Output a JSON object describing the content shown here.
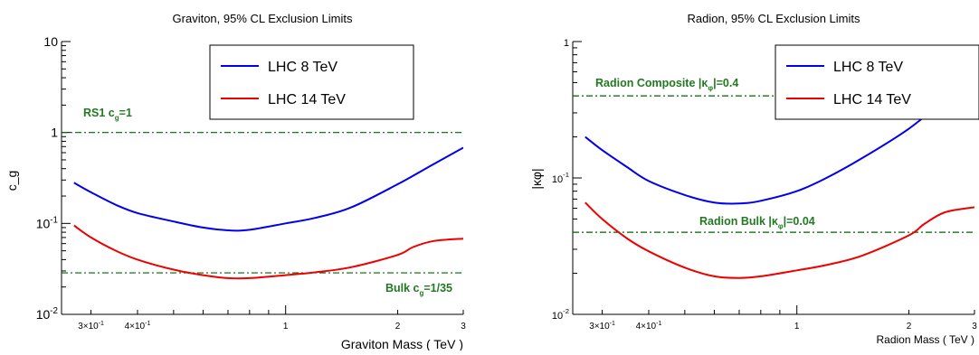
{
  "chart_data": [
    {
      "type": "line",
      "title": "Graviton, 95% CL Exclusion Limits",
      "xlabel": "Graviton Mass ( TeV )",
      "ylabel": "c_g",
      "xscale": "log",
      "yscale": "log",
      "xlim": [
        0.25,
        3
      ],
      "ylim": [
        0.01,
        10
      ],
      "x_ticks": [
        {
          "value": 0.3,
          "base": "3×10",
          "exp": "-1"
        },
        {
          "value": 0.4,
          "base": "4×10",
          "exp": "-1"
        },
        {
          "value": 1,
          "base": "1",
          "exp": ""
        },
        {
          "value": 2,
          "base": "2",
          "exp": ""
        },
        {
          "value": 3,
          "base": "3",
          "exp": ""
        }
      ],
      "y_ticks": [
        {
          "value": 0.01,
          "base": "10",
          "exp": "-2"
        },
        {
          "value": 0.1,
          "base": "10",
          "exp": "-1"
        },
        {
          "value": 1,
          "base": "1",
          "exp": ""
        },
        {
          "value": 10,
          "base": "10",
          "exp": ""
        }
      ],
      "legend": {
        "placement": "top-right",
        "entries": [
          "LHC 8 TeV",
          "LHC 14 TeV"
        ]
      },
      "series": [
        {
          "name": "LHC 8 TeV",
          "color": "#0000ee",
          "x": [
            0.27,
            0.3,
            0.35,
            0.4,
            0.5,
            0.6,
            0.7,
            0.8,
            1.0,
            1.2,
            1.5,
            2.0,
            2.5,
            3.0
          ],
          "y": [
            0.28,
            0.22,
            0.16,
            0.13,
            0.105,
            0.09,
            0.084,
            0.085,
            0.1,
            0.115,
            0.15,
            0.27,
            0.45,
            0.68
          ]
        },
        {
          "name": "LHC 14 TeV",
          "color": "#ee0000",
          "x": [
            0.27,
            0.3,
            0.35,
            0.4,
            0.5,
            0.6,
            0.7,
            0.8,
            1.0,
            1.2,
            1.5,
            2.0,
            2.2,
            2.5,
            3.0
          ],
          "y": [
            0.095,
            0.07,
            0.05,
            0.04,
            0.031,
            0.027,
            0.025,
            0.025,
            0.027,
            0.029,
            0.033,
            0.045,
            0.055,
            0.064,
            0.068
          ]
        }
      ],
      "reference_lines": [
        {
          "label_main": "RS1 c",
          "label_sub": "g",
          "label_tail": "=1",
          "y": 1
        },
        {
          "label_main": "Bulk c",
          "label_sub": "g",
          "label_tail": "=1/35",
          "y": 0.0286
        }
      ]
    },
    {
      "type": "line",
      "title": "Radion, 95% CL Exclusion Limits",
      "xlabel": "Radion Mass ( TeV )",
      "ylabel": "|κφ|",
      "xscale": "log",
      "yscale": "log",
      "xlim": [
        0.25,
        3
      ],
      "ylim": [
        0.01,
        1
      ],
      "x_ticks": [
        {
          "value": 0.3,
          "base": "3×10",
          "exp": "-1"
        },
        {
          "value": 0.4,
          "base": "4×10",
          "exp": "-1"
        },
        {
          "value": 1,
          "base": "1",
          "exp": ""
        },
        {
          "value": 2,
          "base": "2",
          "exp": ""
        },
        {
          "value": 3,
          "base": "3",
          "exp": ""
        }
      ],
      "y_ticks": [
        {
          "value": 0.01,
          "base": "10",
          "exp": "-2"
        },
        {
          "value": 0.1,
          "base": "10",
          "exp": "-1"
        },
        {
          "value": 1,
          "base": "1",
          "exp": ""
        }
      ],
      "legend": {
        "placement": "top-right",
        "entries": [
          "LHC 8 TeV",
          "LHC 14 TeV"
        ]
      },
      "series": [
        {
          "name": "LHC 8 TeV",
          "color": "#0000ee",
          "x": [
            0.27,
            0.3,
            0.35,
            0.4,
            0.5,
            0.6,
            0.7,
            0.8,
            1.0,
            1.2,
            1.5,
            2.0,
            2.5,
            3.0
          ],
          "y": [
            0.2,
            0.16,
            0.12,
            0.095,
            0.075,
            0.066,
            0.065,
            0.068,
            0.08,
            0.1,
            0.14,
            0.23,
            0.38,
            0.6
          ]
        },
        {
          "name": "LHC 14 TeV",
          "color": "#ee0000",
          "x": [
            0.27,
            0.3,
            0.35,
            0.4,
            0.5,
            0.6,
            0.7,
            0.8,
            1.0,
            1.2,
            1.5,
            2.0,
            2.2,
            2.5,
            3.0
          ],
          "y": [
            0.066,
            0.05,
            0.036,
            0.029,
            0.022,
            0.019,
            0.0185,
            0.019,
            0.021,
            0.023,
            0.027,
            0.038,
            0.046,
            0.056,
            0.061
          ]
        }
      ],
      "reference_lines": [
        {
          "label_main": "Radion Composite |κ",
          "label_sub": "φ",
          "label_tail": "|=0.4",
          "y": 0.4
        },
        {
          "label_main": "Radion Bulk |κ",
          "label_sub": "φ",
          "label_tail": "|=0.04",
          "y": 0.04
        }
      ]
    }
  ]
}
